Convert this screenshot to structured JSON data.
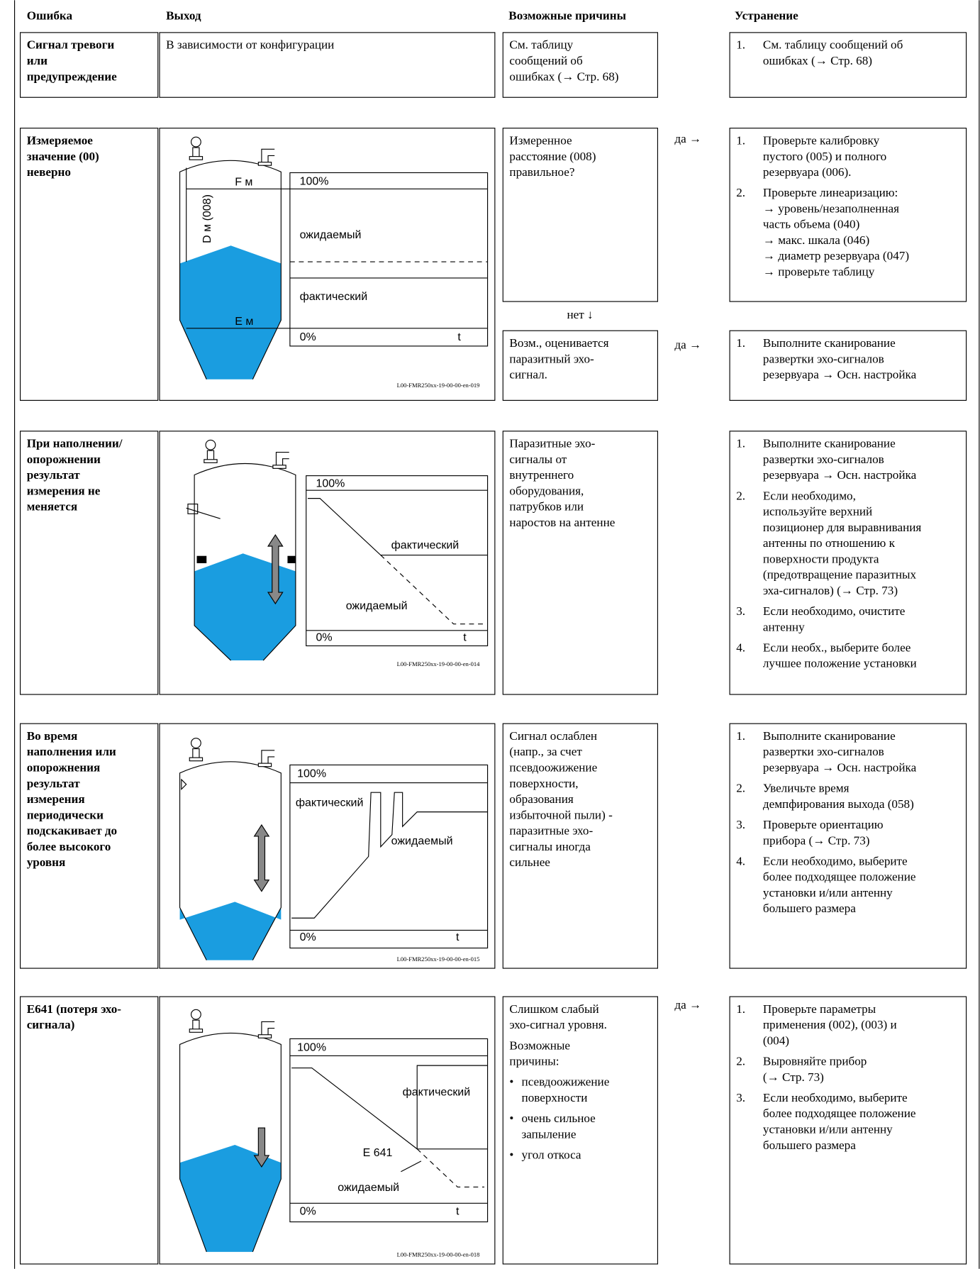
{
  "header": {
    "error": "Ошибка",
    "output": "Выход",
    "causes": "Возможные причины",
    "remedy": "Устранение"
  },
  "rows": [
    {
      "error": [
        "Сигнал тревоги",
        "или",
        "предупреждение"
      ],
      "output": [
        "В зависимости от конфигурации"
      ],
      "causes": [
        [
          {
            "lines": [
              "См. таблицу",
              "сообщений об",
              "ошибках (→ Стр. 68)"
            ]
          }
        ]
      ],
      "remedy": [
        [
          {
            "num": "1.",
            "lines": [
              "См. таблицу сообщений об",
              "ошибках (→ Стр. 68)"
            ]
          }
        ]
      ]
    },
    {
      "error": [
        "Измеряемое",
        "значение (00)",
        "неверно"
      ],
      "figure": {
        "labels": [
          "F м",
          "D м (008)",
          "100%",
          "ожидаемый",
          "фактический",
          "E м",
          "0%",
          "t"
        ],
        "code": "L00-FMR250xx-19-00-00-en-019"
      },
      "causes": [
        [
          {
            "lines": [
              "Измеренное",
              "расстояние (008)",
              "правильное?"
            ]
          }
        ],
        [
          {
            "lines": [
              "Возм., оценивается",
              "паразитный эхо-",
              "сигнал."
            ]
          }
        ]
      ],
      "yes": [
        "да →",
        "да →"
      ],
      "no": "нет ↓",
      "remedy": [
        [
          {
            "num": "1.",
            "lines": [
              "Проверьте калибровку",
              "пустого (005) и полного",
              "резервуара (006)."
            ]
          },
          {
            "num": "2.",
            "lines": [
              "Проверьте линеаризацию:",
              "→ уровень/незаполненная",
              "часть объема (040)",
              "→ макс. шкала (046)",
              "→ диаметр резервуара (047)",
              "→ проверьте таблицу"
            ]
          }
        ],
        [
          {
            "num": "1.",
            "lines": [
              "Выполните сканирование",
              "развертки эхо-сигналов",
              "резервуара → Осн. настройка"
            ]
          }
        ]
      ]
    },
    {
      "error": [
        "При наполнении/",
        "опорожнении",
        "результат",
        "измерения не",
        "меняется"
      ],
      "figure": {
        "labels": [
          "100%",
          "фактический",
          "ожидаемый",
          "0%",
          "t"
        ],
        "code": "L00-FMR250xx-19-00-00-en-014"
      },
      "causes": [
        [
          {
            "lines": [
              "Паразитные эхо-",
              "сигналы от",
              "внутреннего",
              "оборудования,",
              "патрубков или",
              "наростов на антенне"
            ]
          }
        ]
      ],
      "remedy": [
        [
          {
            "num": "1.",
            "lines": [
              "Выполните сканирование",
              "развертки эхо-сигналов",
              "резервуара → Осн. настройка"
            ]
          },
          {
            "num": "2.",
            "lines": [
              "Если необходимо,",
              "используйте верхний",
              "позиционер для выравнивания",
              "антенны по отношению к",
              "поверхности продукта",
              "(предотвращение паразитных",
              "эха-сигналов) (→ Стр. 73)"
            ]
          },
          {
            "num": "3.",
            "lines": [
              "Если необходимо, очистите",
              "антенну"
            ]
          },
          {
            "num": "4.",
            "lines": [
              "Если необх., выберите  более",
              "лучшее положение установки"
            ]
          }
        ]
      ]
    },
    {
      "error": [
        "Во время",
        "наполнения или",
        "опорожнения",
        "результат",
        "измерения",
        "периодически",
        "подскакивает до",
        "более высокого",
        "уровня"
      ],
      "figure": {
        "labels": [
          "100%",
          "фактический",
          "ожидаемый",
          "0%",
          "t"
        ],
        "code": "L00-FMR250xx-19-00-00-en-015"
      },
      "causes": [
        [
          {
            "lines": [
              "Сигнал ослаблен",
              "(напр., за счет",
              "псевдоожижение",
              "поверхности,",
              "образования",
              "избыточной пыли) -",
              "паразитные эхо-",
              "сигналы иногда",
              "сильнее"
            ]
          }
        ]
      ],
      "remedy": [
        [
          {
            "num": "1.",
            "lines": [
              "Выполните сканирование",
              "развертки эхо-сигналов",
              "резервуара → Осн. настройка"
            ]
          },
          {
            "num": "2.",
            "lines": [
              "Увеличьте время",
              "демпфирования выхода (058)"
            ]
          },
          {
            "num": "3.",
            "lines": [
              "Проверьте ориентацию",
              "прибора (→ Стр. 73)"
            ]
          },
          {
            "num": "4.",
            "lines": [
              "Если необходимо, выберите",
              "более подходящее положение",
              "установки и/или антенну",
              "большего размера"
            ]
          }
        ]
      ]
    },
    {
      "error": [
        "E641 (потеря эхо-",
        "сигнала)"
      ],
      "figure": {
        "labels": [
          "100%",
          "фактический",
          "E 641",
          "ожидаемый",
          "0%",
          "t"
        ],
        "code": "L00-FMR250xx-19-00-00-en-018"
      },
      "causes": [
        [
          {
            "lines": [
              "Слишком слабый",
              "эхо-сигнал уровня."
            ]
          },
          {
            "lines": [
              "Возможные",
              "причины:"
            ]
          },
          {
            "bullet": "•",
            "lines": [
              "псевдоожижение",
              "поверхности"
            ]
          },
          {
            "bullet": "•",
            "lines": [
              "очень сильное",
              "запыление"
            ]
          },
          {
            "bullet": "•",
            "lines": [
              "угол откоса"
            ]
          }
        ]
      ],
      "yes": [
        "да →"
      ],
      "remedy": [
        [
          {
            "num": "1.",
            "lines": [
              "Проверьте параметры",
              "применения (002), (003) и",
              "(004)"
            ]
          },
          {
            "num": "2.",
            "lines": [
              "Выровняйте прибор",
              "(→ Стр. 73)"
            ]
          },
          {
            "num": "3.",
            "lines": [
              "Если необходимо, выберите",
              "более подходящее положение",
              "установки и/или антенну",
              "большего размера"
            ]
          }
        ]
      ]
    }
  ]
}
